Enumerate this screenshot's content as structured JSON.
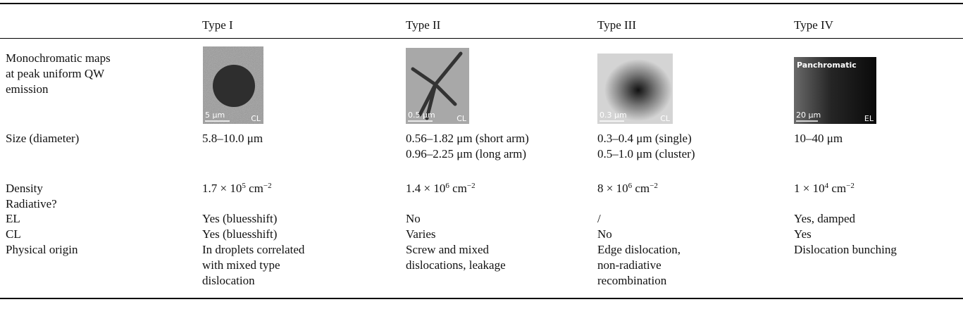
{
  "table": {
    "header": [
      "Type I",
      "Type II",
      "Type III",
      "Type IV"
    ],
    "rows": [
      {
        "label": [
          "Monochromatic maps",
          "at peak uniform QW",
          "emission"
        ],
        "maps": [
          {
            "scale": "5 μm",
            "mode": "CL"
          },
          {
            "scale": "0.5 μm",
            "mode": "CL"
          },
          {
            "scale": "0.3 μm",
            "mode": "CL"
          },
          {
            "note": "Panchromatic",
            "scale": "20 μm",
            "mode": "EL"
          }
        ]
      },
      {
        "label": [
          "Size (diameter)"
        ],
        "cells": [
          [
            "5.8–10.0 μm"
          ],
          [
            "0.56–1.82 μm (short arm)",
            "0.96–2.25 μm (long arm)"
          ],
          [
            "0.3–0.4 μm (single)",
            "0.5–1.0 μm (cluster)"
          ],
          [
            "10–40 μm"
          ]
        ]
      },
      {
        "label": [
          "Density"
        ],
        "cells": [
          [
            [
              {
                "t": "1.7 × 10"
              },
              {
                "sup": "5"
              },
              {
                "t": " cm"
              },
              {
                "sup": "−2"
              }
            ]
          ],
          [
            [
              {
                "t": "1.4 × 10"
              },
              {
                "sup": "6"
              },
              {
                "t": " cm"
              },
              {
                "sup": "−2"
              }
            ]
          ],
          [
            [
              {
                "t": "8 × 10"
              },
              {
                "sup": "6"
              },
              {
                "t": " cm"
              },
              {
                "sup": "−2"
              }
            ]
          ],
          [
            [
              {
                "t": "1 × 10"
              },
              {
                "sup": "4"
              },
              {
                "t": " cm"
              },
              {
                "sup": "−2"
              }
            ]
          ]
        ]
      },
      {
        "label": [
          "Radiative?"
        ]
      },
      {
        "label": [
          "EL"
        ],
        "cells": [
          [
            "Yes (bluesshift)"
          ],
          [
            "No"
          ],
          [
            "/"
          ],
          [
            "Yes, damped"
          ]
        ]
      },
      {
        "label": [
          "CL"
        ],
        "cells": [
          [
            "Yes (bluesshift)"
          ],
          [
            "Varies"
          ],
          [
            "No"
          ],
          [
            "Yes"
          ]
        ]
      },
      {
        "label": [
          "Physical origin"
        ],
        "cells": [
          [
            "In droplets correlated",
            "with mixed type",
            "dislocation"
          ],
          [
            "Screw and mixed",
            "dislocations, leakage"
          ],
          [
            "Edge dislocation,",
            "non-radiative",
            "recombination"
          ],
          [
            "Dislocation bunching"
          ]
        ]
      }
    ]
  }
}
